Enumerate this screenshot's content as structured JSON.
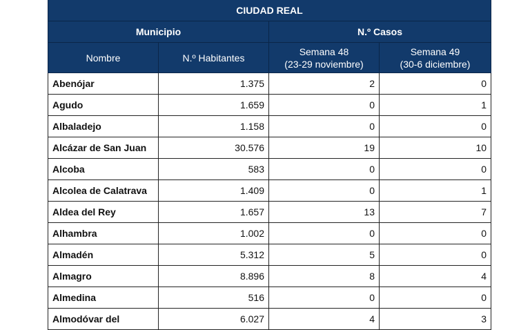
{
  "table": {
    "title": "CIUDAD REAL",
    "group_headers": [
      "Municipio",
      "N.º Casos"
    ],
    "columns": [
      {
        "label": "Nombre"
      },
      {
        "label": "N.º Habitantes"
      },
      {
        "label": "Semana 48",
        "sub": "(23-29 noviembre)"
      },
      {
        "label": "Semana 49",
        "sub": "(30-6 diciembre)"
      }
    ],
    "rows": [
      {
        "nombre": "Abenójar",
        "habitantes": "1.375",
        "s48": "2",
        "s49": "0"
      },
      {
        "nombre": "Agudo",
        "habitantes": "1.659",
        "s48": "0",
        "s49": "1"
      },
      {
        "nombre": "Albaladejo",
        "habitantes": "1.158",
        "s48": "0",
        "s49": "0"
      },
      {
        "nombre": "Alcázar de San Juan",
        "habitantes": "30.576",
        "s48": "19",
        "s49": "10"
      },
      {
        "nombre": "Alcoba",
        "habitantes": "583",
        "s48": "0",
        "s49": "0"
      },
      {
        "nombre": "Alcolea de Calatrava",
        "habitantes": "1.409",
        "s48": "0",
        "s49": "1"
      },
      {
        "nombre": "Aldea del Rey",
        "habitantes": "1.657",
        "s48": "13",
        "s49": "7"
      },
      {
        "nombre": "Alhambra",
        "habitantes": "1.002",
        "s48": "0",
        "s49": "0"
      },
      {
        "nombre": "Almadén",
        "habitantes": "5.312",
        "s48": "5",
        "s49": "0"
      },
      {
        "nombre": "Almagro",
        "habitantes": "8.896",
        "s48": "8",
        "s49": "4"
      },
      {
        "nombre": "Almedina",
        "habitantes": "516",
        "s48": "0",
        "s49": "0"
      },
      {
        "nombre": "Almodóvar del",
        "habitantes": "6.027",
        "s48": "4",
        "s49": "3"
      }
    ]
  },
  "colors": {
    "header_bg": "#123a6b",
    "header_text": "#ffffff"
  }
}
